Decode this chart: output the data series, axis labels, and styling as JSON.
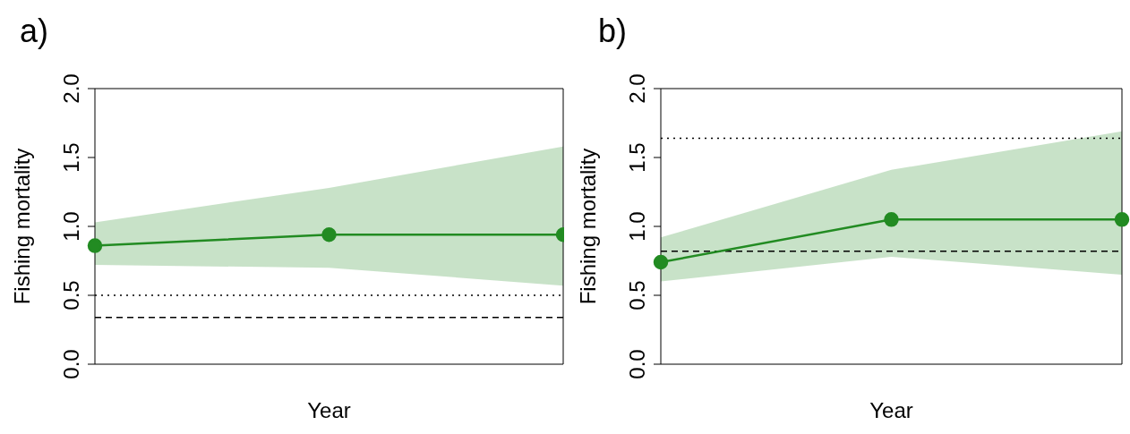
{
  "chart_data": [
    {
      "type": "line",
      "title": "a)",
      "xlabel": "Year",
      "ylabel": "Fishing mortality",
      "categories": [
        null,
        null,
        null
      ],
      "series": [
        {
          "color": "#228b22",
          "values": [
            0.86,
            0.94,
            0.94
          ],
          "lower": [
            0.72,
            0.7,
            0.57
          ],
          "upper": [
            1.03,
            1.28,
            1.58
          ]
        }
      ],
      "ylim": [
        0,
        2
      ],
      "yticks": [
        {
          "value": 0,
          "label": "0.0"
        },
        {
          "value": 0.5,
          "label": "0.5"
        },
        {
          "value": 1,
          "label": "1.0"
        },
        {
          "value": 1.5,
          "label": "1.5"
        },
        {
          "value": 2,
          "label": "2.0"
        }
      ],
      "ref_lines": [
        {
          "axis": "y",
          "value": 0.5,
          "line_style": "dotted",
          "color": "#000000"
        },
        {
          "axis": "y",
          "value": 0.34,
          "line_style": "dashed",
          "color": "#000000"
        }
      ],
      "marker": "circle",
      "line_style": "solid",
      "grid": false,
      "legend": false,
      "tick_labels": "y"
    },
    {
      "type": "line",
      "title": "b)",
      "xlabel": "Year",
      "ylabel": "Fishing mortality",
      "categories": [
        null,
        null,
        null
      ],
      "series": [
        {
          "color": "#228b22",
          "values": [
            0.74,
            1.05,
            1.05
          ],
          "lower": [
            0.6,
            0.78,
            0.65
          ],
          "upper": [
            0.92,
            1.41,
            1.69
          ]
        }
      ],
      "ylim": [
        0,
        2
      ],
      "yticks": [
        {
          "value": 0,
          "label": "0.0"
        },
        {
          "value": 0.5,
          "label": "0.5"
        },
        {
          "value": 1,
          "label": "1.0"
        },
        {
          "value": 1.5,
          "label": "1.5"
        },
        {
          "value": 2,
          "label": "2.0"
        }
      ],
      "ref_lines": [
        {
          "axis": "y",
          "value": 1.64,
          "line_style": "dotted",
          "color": "#000000"
        },
        {
          "axis": "y",
          "value": 0.82,
          "line_style": "dashed",
          "color": "#000000"
        }
      ],
      "marker": "circle",
      "line_style": "solid",
      "grid": false,
      "legend": false,
      "tick_labels": "y"
    }
  ]
}
